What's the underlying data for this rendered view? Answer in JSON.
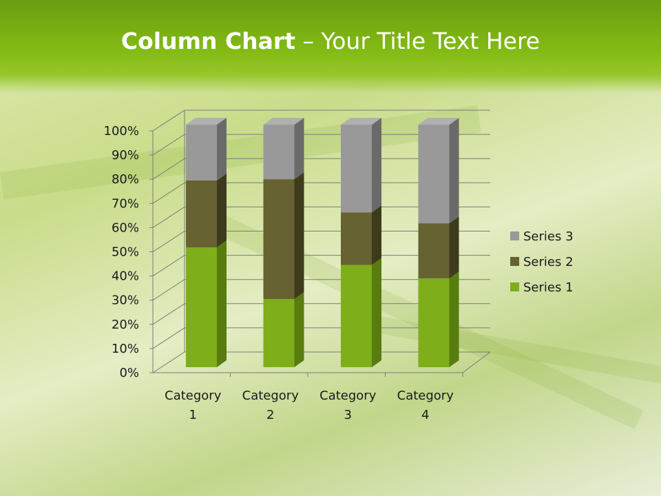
{
  "title": {
    "bold": "Column Chart",
    "rest": " – Your Title Text Here"
  },
  "chart_data": {
    "type": "bar",
    "stacking": "percent",
    "style": "3d",
    "categories": [
      "Category 1",
      "Category 2",
      "Category 3",
      "Category 4"
    ],
    "series": [
      {
        "name": "Series 1",
        "values": [
          4.3,
          2.5,
          3.5,
          4.5
        ],
        "color": "#7eae1a"
      },
      {
        "name": "Series 2",
        "values": [
          2.4,
          4.4,
          1.8,
          2.8
        ],
        "color": "#666232"
      },
      {
        "name": "Series 3",
        "values": [
          2,
          2,
          3,
          5
        ],
        "color": "#999999"
      }
    ],
    "yticks": [
      "0%",
      "10%",
      "20%",
      "30%",
      "40%",
      "50%",
      "60%",
      "70%",
      "80%",
      "90%",
      "100%"
    ],
    "ylim": [
      0,
      100
    ],
    "grid": true,
    "legend": "right"
  }
}
